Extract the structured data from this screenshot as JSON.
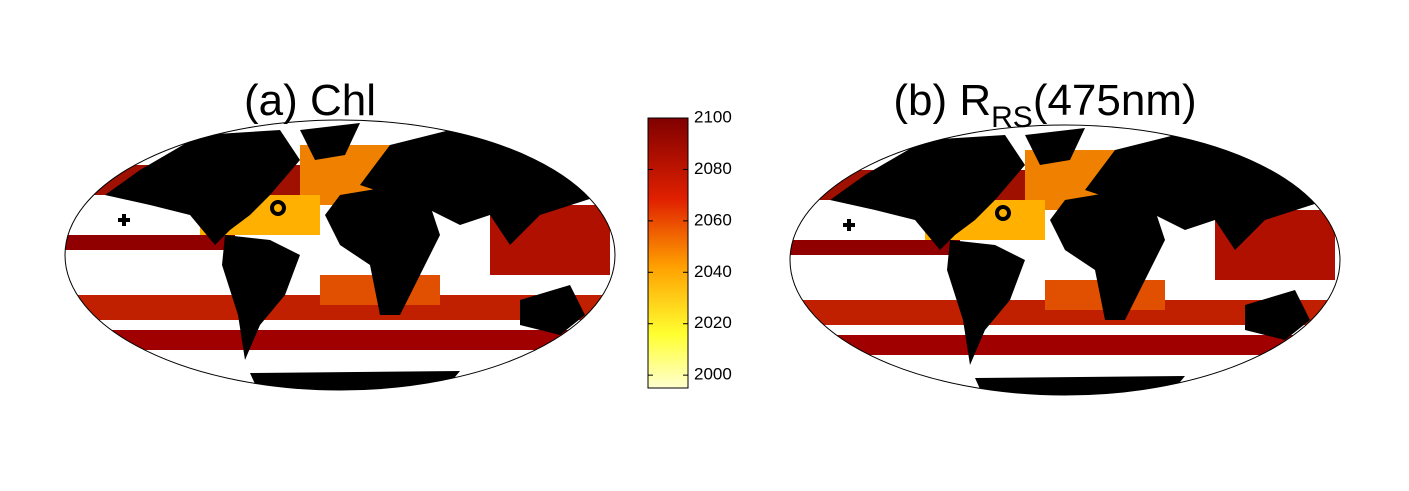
{
  "maps": [
    {
      "title": "(a) Chl"
    },
    {
      "title": "(b) R",
      "title_subscript": "RS",
      "title_suffix": "(475nm)"
    }
  ],
  "colorbar": {
    "lim": [
      1995,
      2100
    ],
    "ticks": [
      2000,
      2020,
      2040,
      2060,
      2080,
      2100
    ]
  }
}
